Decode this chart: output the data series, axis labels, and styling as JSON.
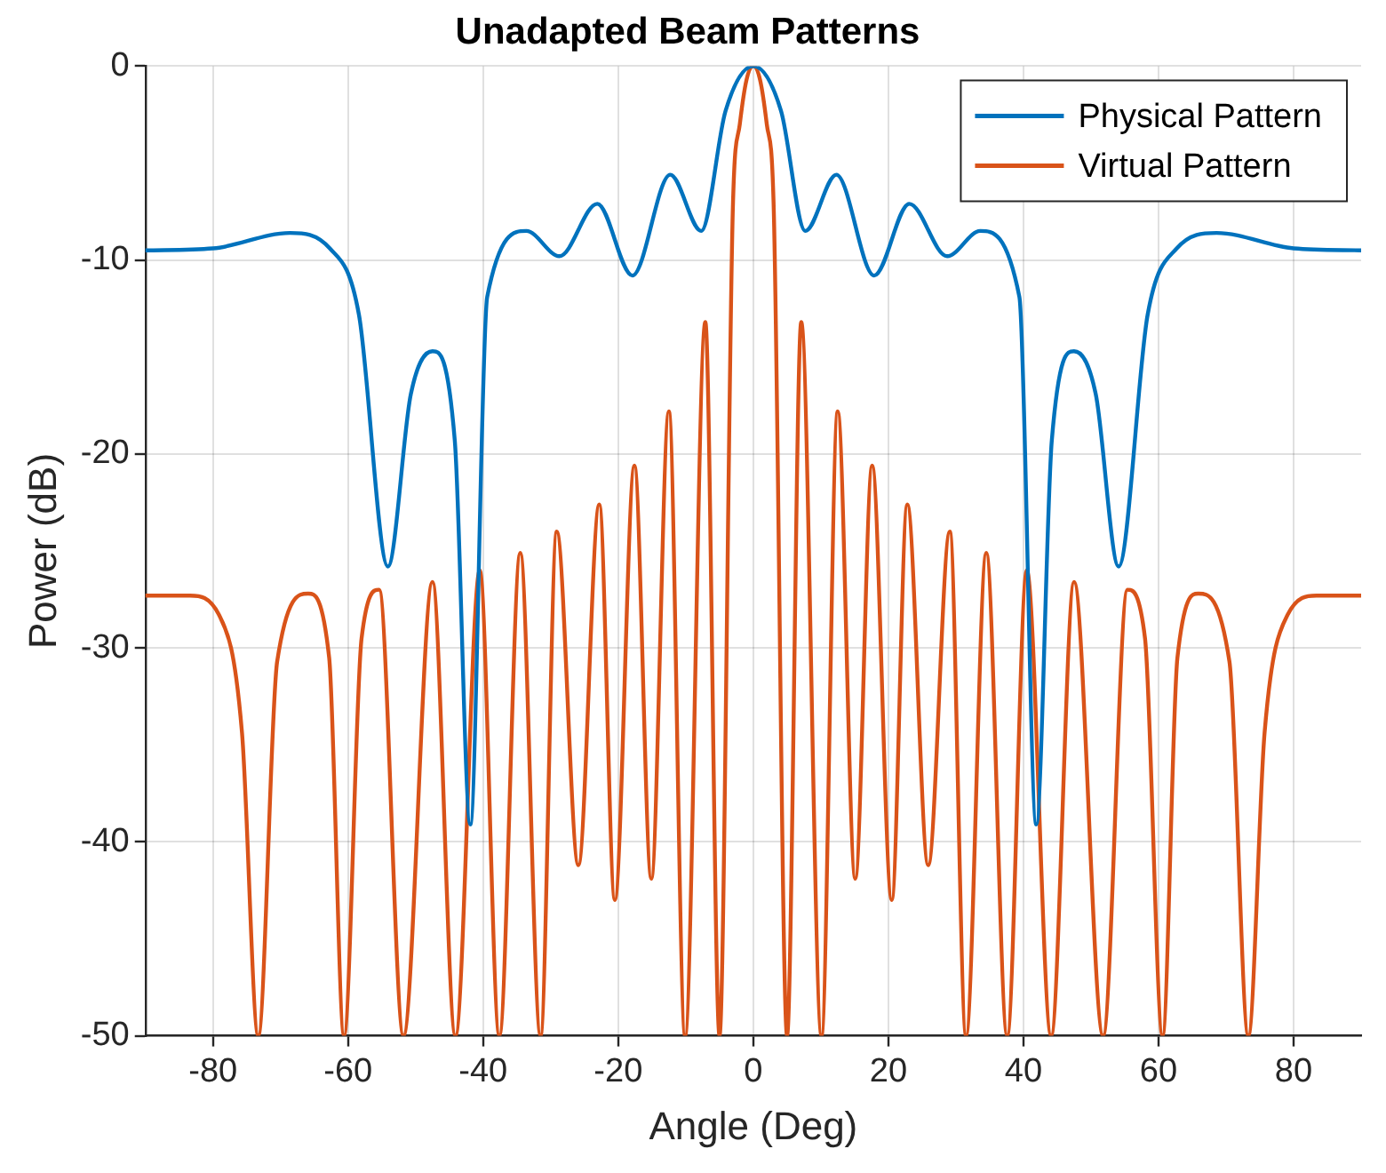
{
  "chart_data": {
    "type": "line",
    "title": "Unadapted Beam Patterns",
    "xlabel": "Angle (Deg)",
    "ylabel": "Power (dB)",
    "xlim": [
      -90,
      90
    ],
    "xticks": [
      -80,
      -60,
      -40,
      -20,
      0,
      20,
      40,
      60,
      80
    ],
    "ylim": [
      -50,
      0
    ],
    "yticks": [
      -50,
      -40,
      -30,
      -20,
      -10,
      0
    ],
    "grid": true,
    "legend": "top right",
    "marker": "none",
    "line_style": "solid",
    "series": [
      {
        "name": "Physical Pattern",
        "color": "#0072bd",
        "x": [
          -90,
          -80,
          -68.6,
          -62.7,
          -58.4,
          -54.1,
          -50.7,
          -47.5,
          -44.2,
          -41.9,
          -39.4,
          -33.6,
          -28.7,
          -23.1,
          -17.9,
          -12.3,
          -7.7,
          -4.1,
          0,
          4.1,
          7.7,
          12.3,
          17.9,
          23.1,
          28.7,
          33.6,
          39.4,
          41.9,
          44.2,
          47.5,
          50.7,
          54.1,
          58.4,
          62.7,
          68.6,
          80,
          90
        ],
        "values": [
          -9.5,
          -9.4,
          -8.6,
          -9.4,
          -12.8,
          -25.8,
          -16.9,
          -14.7,
          -19.3,
          -39.1,
          -11.9,
          -8.5,
          -9.8,
          -7.1,
          -10.8,
          -5.6,
          -8.5,
          -2.3,
          0,
          -2.3,
          -8.5,
          -5.6,
          -10.8,
          -7.1,
          -9.8,
          -8.5,
          -11.9,
          -39.1,
          -19.3,
          -14.7,
          -16.9,
          -25.8,
          -12.8,
          -9.4,
          -8.6,
          -9.4,
          -9.5
        ]
      },
      {
        "name": "Virtual Pattern",
        "color": "#d95319",
        "x": [
          -90,
          -83.4,
          -79.1,
          -75.7,
          -73.3,
          -70.5,
          -65.9,
          -62.8,
          -60.6,
          -58,
          -55.4,
          -51.8,
          -47.5,
          -44.1,
          -40.5,
          -37.6,
          -34.5,
          -31.5,
          -29.1,
          -25.9,
          -22.8,
          -20.5,
          -17.6,
          -15.1,
          -12.5,
          -10.1,
          -7.1,
          -5,
          -3,
          -2,
          -1,
          0,
          1,
          2,
          3,
          5,
          7.1,
          10.1,
          12.5,
          15.1,
          17.6,
          20.5,
          22.8,
          25.9,
          29.1,
          31.5,
          34.5,
          37.6,
          40.5,
          44.1,
          47.5,
          51.8,
          55.4,
          58,
          60.6,
          62.8,
          65.9,
          70.5,
          73.3,
          75.7,
          79.1,
          83.4,
          90
        ],
        "values": [
          -27.3,
          -27.3,
          -28.3,
          -34.4,
          -50,
          -30.7,
          -27.2,
          -30.5,
          -50,
          -29.5,
          -27,
          -50,
          -26.6,
          -50,
          -26,
          -50,
          -25.1,
          -50,
          -24,
          -41.2,
          -22.6,
          -43,
          -20.6,
          -41.9,
          -17.8,
          -50,
          -13.2,
          -50,
          -7,
          -3,
          -0.7,
          0,
          -0.7,
          -3,
          -7,
          -50,
          -13.2,
          -50,
          -17.8,
          -41.9,
          -20.6,
          -43,
          -22.6,
          -41.2,
          -24,
          -50,
          -25.1,
          -50,
          -26,
          -50,
          -26.6,
          -50,
          -27,
          -29.5,
          -50,
          -30.5,
          -27.2,
          -30.7,
          -50,
          -34.4,
          -28.3,
          -27.3,
          -27.3
        ]
      }
    ]
  }
}
